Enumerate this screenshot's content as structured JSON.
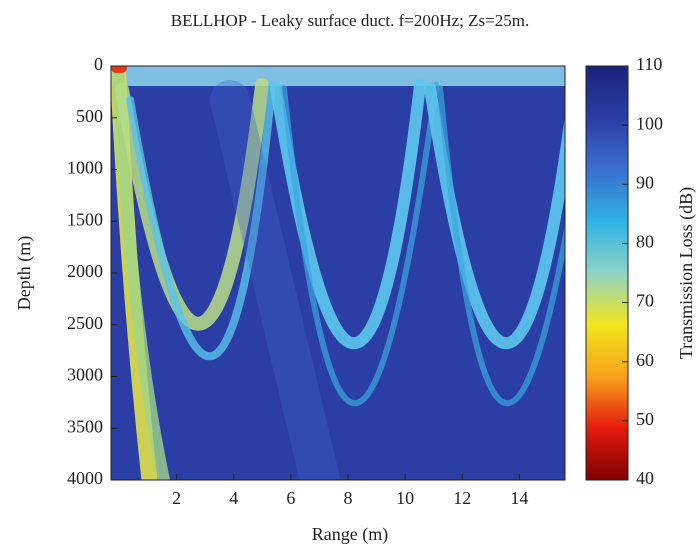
{
  "chart_data": {
    "type": "heatmap",
    "title": "BELLHOP - Leaky surface duct. f=200Hz; Zs=25m.",
    "x_label": "Range (m)",
    "y_label": "Depth (m)",
    "xlim": [
      -0.3,
      15.6
    ],
    "xticks": [
      2,
      4,
      6,
      8,
      10,
      12,
      14
    ],
    "ylim": [
      4000,
      0
    ],
    "yticks": [
      0,
      500,
      1000,
      1500,
      2000,
      2500,
      3000,
      3500,
      4000
    ],
    "background_color": "#2b3ea6",
    "colorbar": {
      "label": "Transmission Loss (dB)",
      "lim": [
        40,
        110
      ],
      "ticks": [
        40,
        50,
        60,
        70,
        80,
        90,
        100,
        110
      ],
      "colors": [
        "#7f0000",
        "#e51a0e",
        "#f7a21a",
        "#f2e51c",
        "#8fd3c4",
        "#2fb2e6",
        "#3a6fd0",
        "#2b3ea6",
        "#1a237a"
      ]
    }
  }
}
